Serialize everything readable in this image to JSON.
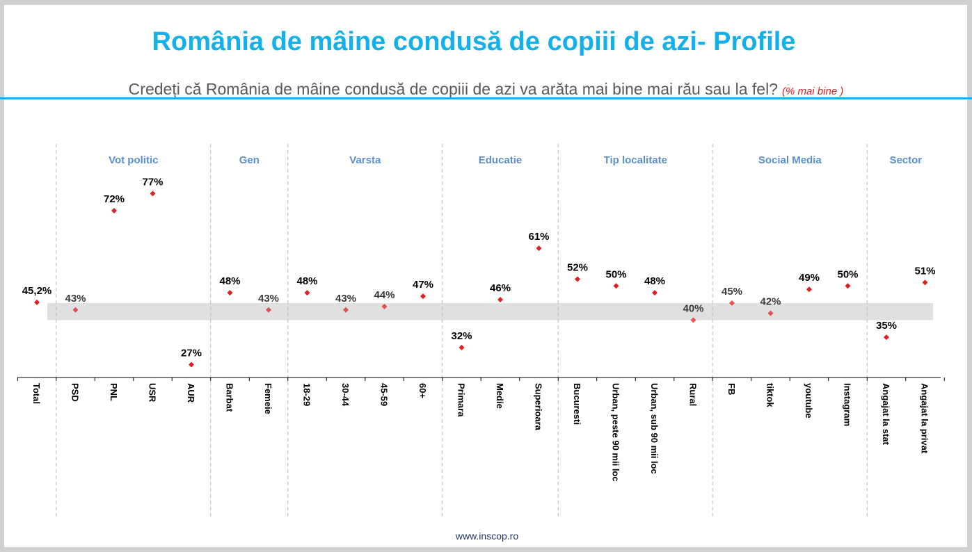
{
  "header": {
    "title": "România de mâine condusă de copiii de azi- Profile",
    "subtitle": "Credeți că România de mâine condusă de copiii de azi va arăta mai bine mai rău sau la fel?",
    "subtitle_note": "(% mai bine  )"
  },
  "footer": {
    "url": "www.inscop.ro"
  },
  "colors": {
    "title": "#14b0ea",
    "group_label": "#5b8fd1",
    "marker": "#e02020",
    "band": "#e0e0e0"
  },
  "chart_data": {
    "type": "scatter",
    "categories": [
      "Total",
      "PSD",
      "PNL",
      "USR",
      "AUR",
      "Barbat",
      "Femeie",
      "18-29",
      "30-44",
      "45-59",
      "60+",
      "Primara",
      "Medie",
      "Superioara",
      "Bucuresti",
      "Urban, peste 90 mii loc",
      "Urban, sub 90 mii loc",
      "Rural",
      "FB",
      "tiktok",
      "youtube",
      "Instagram",
      "Angajat la stat",
      "Angajat la privat"
    ],
    "values": [
      45.2,
      43,
      72,
      77,
      27,
      48,
      43,
      48,
      43,
      44,
      47,
      32,
      46,
      61,
      52,
      50,
      48,
      40,
      45,
      42,
      49,
      50,
      35,
      51
    ],
    "data_labels": [
      "45,2%",
      "43%",
      "72%",
      "77%",
      "27%",
      "48%",
      "43%",
      "48%",
      "43%",
      "44%",
      "47%",
      "32%",
      "46%",
      "61%",
      "52%",
      "50%",
      "48%",
      "40%",
      "45%",
      "42%",
      "49%",
      "50%",
      "35%",
      "51%"
    ],
    "groups": [
      {
        "label": "Vot politic",
        "first": 1,
        "count": 4
      },
      {
        "label": "Gen",
        "first": 5,
        "count": 2
      },
      {
        "label": "Varsta",
        "first": 7,
        "count": 4
      },
      {
        "label": "Educatie",
        "first": 11,
        "count": 3
      },
      {
        "label": "Tip localitate",
        "first": 14,
        "count": 4
      },
      {
        "label": "Social Media",
        "first": 18,
        "count": 4
      },
      {
        "label": "Sector",
        "first": 22,
        "count": 2
      }
    ],
    "band_range": [
      40,
      45
    ],
    "marker": "diamond"
  }
}
